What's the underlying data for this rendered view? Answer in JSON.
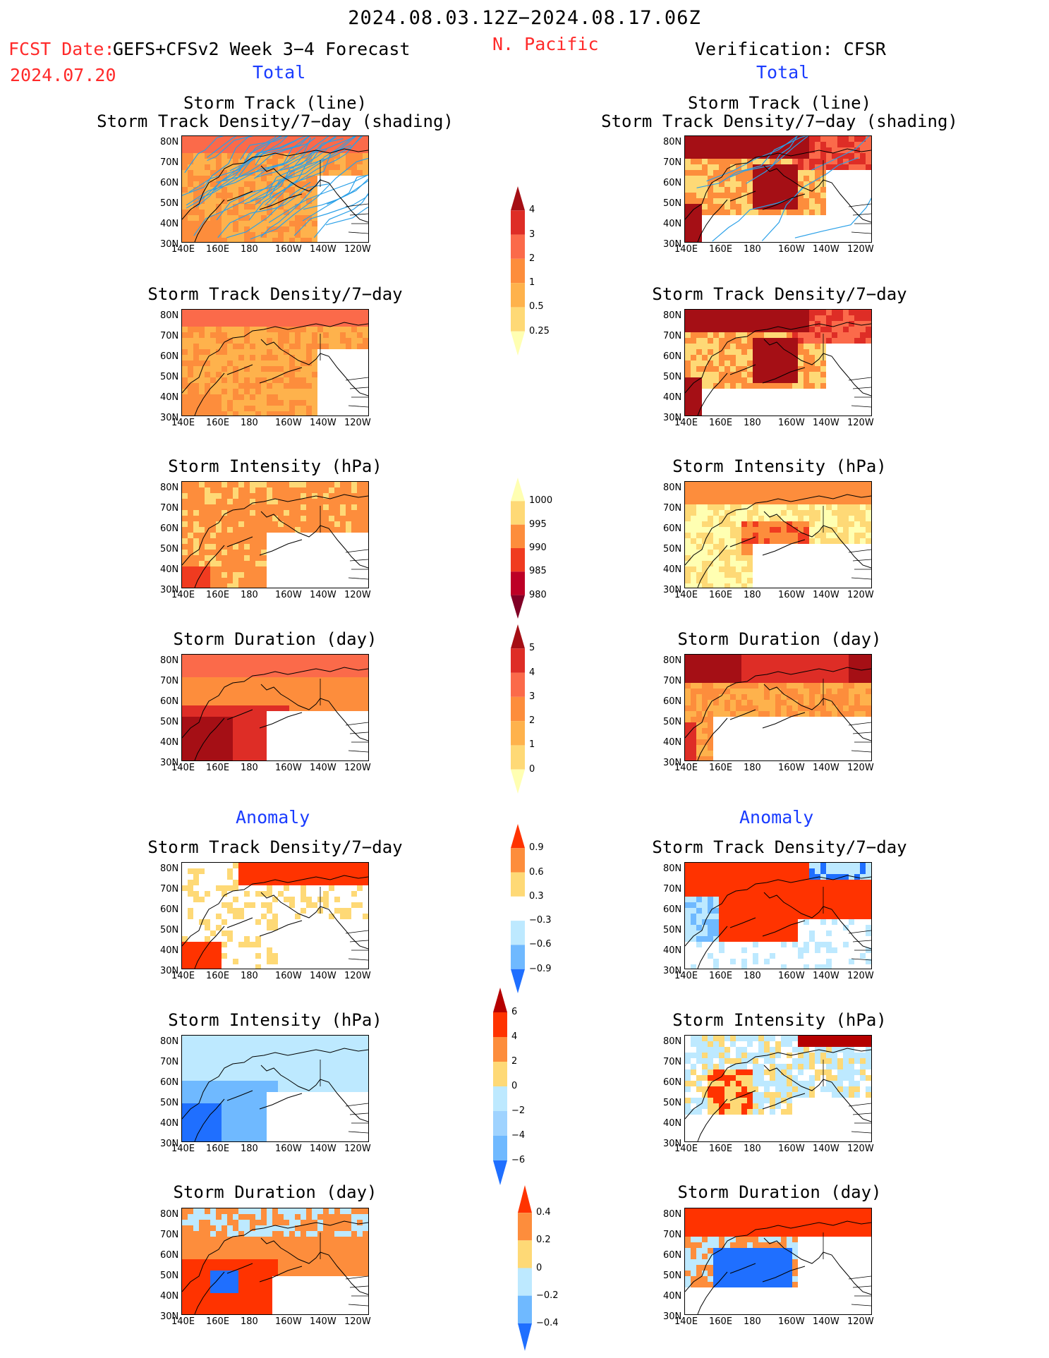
{
  "header": {
    "period": "2024.08.03.12Z−2024.08.17.06Z",
    "fcst_label": "FCST Date:",
    "fcst_source": "GEFS+CFSv2 Week 3−4 Forecast",
    "fcst_date": "2024.07.20",
    "region": "N. Pacific",
    "verification": "Verification: CFSR",
    "left_total": "Total",
    "right_total": "Total",
    "left_anomaly": "Anomaly",
    "right_anomaly": "Anomaly"
  },
  "panel_titles": {
    "track_line": "Storm Track (line)",
    "track_density_shading": "Storm Track Density/7−day (shading)",
    "track_density": "Storm Track Density/7−day",
    "intensity": "Storm Intensity (hPa)",
    "duration": "Storm Duration (day)"
  },
  "axes": {
    "lat_ticks": [
      "80N",
      "70N",
      "60N",
      "50N",
      "40N",
      "30N"
    ],
    "lon_ticks": [
      "140E",
      "160E",
      "180",
      "160W",
      "140W",
      "120W"
    ]
  },
  "colorbars": [
    {
      "id": "density",
      "labels": [
        "4",
        "3",
        "2",
        "1",
        "0.5",
        "0.25"
      ],
      "colors": [
        "#a50f15",
        "#de2d26",
        "#fb6a4a",
        "#fd8d3c",
        "#feb24c",
        "#fed976",
        "#ffffb2"
      ]
    },
    {
      "id": "intensity",
      "labels": [
        "1000",
        "995",
        "990",
        "985",
        "980"
      ],
      "colors": [
        "#ffffb2",
        "#fed976",
        "#fd8d3c",
        "#f03b20",
        "#bd0026",
        "#800026"
      ]
    },
    {
      "id": "duration",
      "labels": [
        "5",
        "4",
        "3",
        "2",
        "1",
        "0"
      ],
      "colors": [
        "#a50f15",
        "#de2d26",
        "#fb6a4a",
        "#fd8d3c",
        "#feb24c",
        "#fed976",
        "#ffffb2"
      ]
    },
    {
      "id": "anom_density",
      "labels": [
        "0.9",
        "0.6",
        "0.3",
        "−0.3",
        "−0.6",
        "−0.9"
      ],
      "colors": [
        "#ff3300",
        "#fd8d3c",
        "#fed976",
        "#ffffff",
        "#bde9ff",
        "#6fb9ff",
        "#1f6fff"
      ]
    },
    {
      "id": "anom_intensity",
      "labels": [
        "6",
        "4",
        "2",
        "0",
        "−2",
        "−4",
        "−6"
      ],
      "colors": [
        "#b50000",
        "#ff3300",
        "#fd8d3c",
        "#fed976",
        "#bde9ff",
        "#9fd3ff",
        "#6fb9ff",
        "#1f6fff"
      ]
    },
    {
      "id": "anom_duration",
      "labels": [
        "0.4",
        "0.2",
        "0",
        "−0.2",
        "−0.4"
      ],
      "colors": [
        "#ff3300",
        "#fd8d3c",
        "#fed976",
        "#bde9ff",
        "#6fb9ff",
        "#1f6fff"
      ]
    }
  ],
  "colors": {
    "forecast_red": "#ff2a2a",
    "label_blue": "#1a3cff",
    "track_line": "#2aa0e8"
  }
}
